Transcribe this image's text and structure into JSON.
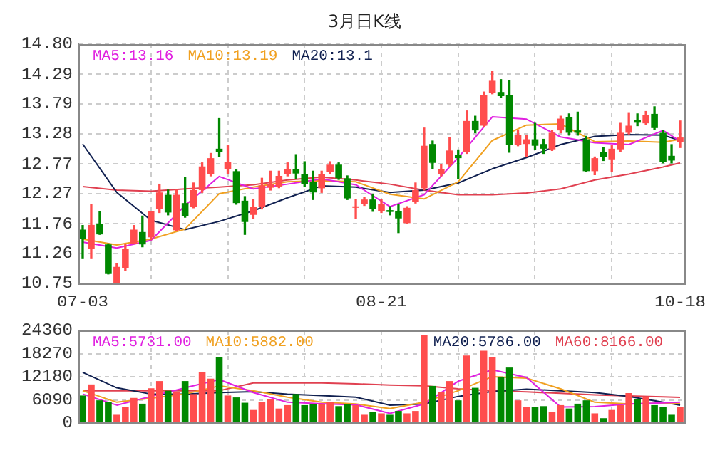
{
  "chart_data": [
    {
      "type": "candlestick",
      "title": "3月日K线",
      "categories": [
        "07-03",
        null,
        null,
        null,
        null,
        null,
        null,
        null,
        null,
        null,
        null,
        null,
        null,
        null,
        null,
        null,
        null,
        null,
        null,
        null,
        null,
        null,
        null,
        null,
        null,
        null,
        null,
        null,
        null,
        null,
        null,
        null,
        null,
        null,
        null,
        "08-21",
        null,
        null,
        null,
        null,
        null,
        null,
        null,
        null,
        null,
        null,
        null,
        null,
        null,
        null,
        null,
        null,
        null,
        null,
        null,
        null,
        null,
        null,
        null,
        null,
        null,
        null,
        null,
        null,
        null,
        null,
        null,
        null,
        null,
        null,
        "10-18"
      ],
      "ohlc": [
        [
          11.66,
          11.73,
          11.17,
          11.5
        ],
        [
          11.33,
          12.09,
          11.17,
          11.74
        ],
        [
          11.76,
          11.97,
          11.58,
          11.58
        ],
        [
          11.41,
          11.42,
          10.91,
          10.91
        ],
        [
          10.76,
          11.09,
          10.75,
          11.03
        ],
        [
          11.01,
          11.41,
          10.97,
          11.34
        ],
        [
          11.42,
          11.73,
          11.42,
          11.66
        ],
        [
          11.62,
          11.89,
          11.37,
          11.41
        ],
        [
          11.53,
          11.97,
          11.49,
          11.97
        ],
        [
          12.01,
          12.43,
          11.95,
          12.29
        ],
        [
          12.25,
          12.33,
          11.91,
          11.95
        ],
        [
          11.65,
          12.33,
          11.65,
          12.25
        ],
        [
          12.11,
          12.55,
          11.87,
          11.89
        ],
        [
          12.05,
          12.45,
          12.03,
          12.33
        ],
        [
          12.33,
          12.79,
          12.29,
          12.73
        ],
        [
          12.6,
          12.95,
          12.57,
          12.87
        ],
        [
          13.03,
          13.54,
          12.9,
          12.98
        ],
        [
          12.68,
          13.08,
          12.61,
          12.81
        ],
        [
          12.65,
          12.67,
          12.09,
          12.11
        ],
        [
          12.15,
          12.22,
          11.58,
          11.79
        ],
        [
          11.91,
          12.17,
          11.85,
          12.05
        ],
        [
          12.05,
          12.53,
          12.01,
          12.41
        ],
        [
          12.37,
          12.65,
          12.33,
          12.43
        ],
        [
          12.39,
          12.65,
          12.37,
          12.57
        ],
        [
          12.6,
          12.79,
          12.57,
          12.69
        ],
        [
          12.69,
          12.93,
          12.53,
          12.61
        ],
        [
          12.6,
          12.81,
          12.39,
          12.43
        ],
        [
          12.47,
          12.65,
          12.17,
          12.29
        ],
        [
          12.36,
          12.65,
          12.29,
          12.6
        ],
        [
          12.63,
          12.81,
          12.61,
          12.76
        ],
        [
          12.76,
          12.79,
          12.51,
          12.53
        ],
        [
          12.53,
          12.57,
          12.17,
          12.19
        ],
        [
          12.03,
          12.17,
          11.85,
          12.04
        ],
        [
          12.09,
          12.21,
          12.07,
          12.17
        ],
        [
          12.17,
          12.25,
          11.97,
          12.01
        ],
        [
          11.97,
          12.17,
          11.95,
          12.09
        ],
        [
          11.99,
          12.05,
          11.91,
          11.96
        ],
        [
          11.97,
          12.09,
          11.61,
          11.85
        ],
        [
          11.77,
          12.05,
          11.77,
          12.03
        ],
        [
          12.13,
          12.45,
          12.11,
          12.33
        ],
        [
          12.36,
          13.38,
          12.33,
          13.08
        ],
        [
          13.11,
          13.16,
          12.69,
          12.79
        ],
        [
          12.6,
          12.76,
          12.57,
          12.68
        ],
        [
          12.76,
          13.22,
          12.73,
          13.0
        ],
        [
          12.93,
          13.01,
          12.53,
          12.87
        ],
        [
          12.97,
          13.67,
          12.95,
          13.5
        ],
        [
          13.5,
          13.58,
          13.3,
          13.34
        ],
        [
          13.42,
          13.99,
          13.4,
          13.94
        ],
        [
          13.98,
          14.34,
          13.96,
          14.18
        ],
        [
          13.99,
          14.2,
          13.9,
          13.92
        ],
        [
          13.94,
          14.18,
          12.97,
          13.1
        ],
        [
          13.1,
          13.34,
          13.08,
          13.26
        ],
        [
          13.11,
          13.26,
          12.9,
          13.19
        ],
        [
          13.19,
          13.46,
          13.02,
          13.08
        ],
        [
          13.11,
          13.19,
          12.95,
          13.03
        ],
        [
          13.02,
          13.34,
          13.0,
          13.3
        ],
        [
          13.34,
          13.58,
          13.3,
          13.54
        ],
        [
          13.56,
          13.62,
          13.26,
          13.3
        ],
        [
          13.34,
          13.65,
          13.26,
          13.3
        ],
        [
          13.19,
          13.24,
          12.65,
          12.65
        ],
        [
          12.65,
          12.89,
          12.59,
          12.87
        ],
        [
          12.97,
          13.05,
          12.83,
          12.89
        ],
        [
          12.85,
          13.08,
          12.65,
          13.03
        ],
        [
          13.02,
          13.46,
          12.98,
          13.3
        ],
        [
          13.3,
          13.64,
          13.28,
          13.42
        ],
        [
          13.51,
          13.62,
          13.42,
          13.47
        ],
        [
          13.46,
          13.66,
          13.44,
          13.6
        ],
        [
          13.62,
          13.74,
          13.36,
          13.38
        ],
        [
          13.3,
          13.34,
          12.79,
          12.81
        ],
        [
          12.91,
          13.1,
          12.79,
          12.83
        ],
        [
          13.14,
          13.5,
          13.05,
          13.22
        ]
      ],
      "colors": [
        "#008800",
        "#ff4d4d",
        "#008800",
        "#008800",
        "#ff4d4d",
        "#ff4d4d",
        "#ff4d4d",
        "#008800",
        "#ff4d4d",
        "#ff4d4d",
        "#008800",
        "#ff4d4d",
        "#008800",
        "#ff4d4d",
        "#ff4d4d",
        "#ff4d4d",
        "#008800",
        "#ff4d4d",
        "#008800",
        "#008800",
        "#ff4d4d",
        "#ff4d4d",
        "#ff4d4d",
        "#ff4d4d",
        "#ff4d4d",
        "#008800",
        "#008800",
        "#008800",
        "#ff4d4d",
        "#ff4d4d",
        "#008800",
        "#008800",
        "#ff4d4d",
        "#ff4d4d",
        "#008800",
        "#ff4d4d",
        "#008800",
        "#008800",
        "#ff4d4d",
        "#ff4d4d",
        "#ff4d4d",
        "#008800",
        "#ff4d4d",
        "#ff4d4d",
        "#008800",
        "#ff4d4d",
        "#008800",
        "#ff4d4d",
        "#ff4d4d",
        "#008800",
        "#008800",
        "#ff4d4d",
        "#ff4d4d",
        "#008800",
        "#008800",
        "#ff4d4d",
        "#ff4d4d",
        "#008800",
        "#008800",
        "#008800",
        "#ff4d4d",
        "#008800",
        "#ff4d4d",
        "#ff4d4d",
        "#ff4d4d",
        "#008800",
        "#ff4d4d",
        "#008800",
        "#008800",
        "#008800",
        "#ff4d4d"
      ],
      "ylim": [
        10.75,
        14.8
      ],
      "yticks": [
        10.75,
        11.26,
        11.76,
        12.27,
        12.77,
        13.28,
        13.79,
        14.29,
        {
          "value": 14.8,
          "label": "14.80"
        }
      ],
      "grid": true,
      "legend": "top left",
      "series": [
        {
          "name": "MA5:13.16",
          "color": "#e020e0",
          "type": "line",
          "values": [
            11.45,
            null,
            null,
            null,
            11.35,
            null,
            null,
            null,
            11.48,
            null,
            null,
            null,
            12.07,
            null,
            null,
            null,
            12.56,
            null,
            null,
            null,
            12.35,
            null,
            null,
            null,
            12.43,
            null,
            null,
            null,
            12.52,
            null,
            null,
            null,
            12.42,
            null,
            null,
            null,
            12.05,
            null,
            null,
            null,
            12.25,
            null,
            null,
            null,
            12.88,
            null,
            null,
            null,
            13.57,
            null,
            null,
            null,
            13.53,
            null,
            null,
            null,
            13.23,
            null,
            null,
            null,
            13.13,
            null,
            null,
            null,
            13.1,
            null,
            null,
            null,
            13.34,
            null,
            13.16
          ]
        },
        {
          "name": "MA10:13.19",
          "color": "#f0a020",
          "type": "line",
          "values": [
            11.5,
            null,
            null,
            null,
            11.4,
            null,
            null,
            null,
            11.5,
            null,
            null,
            null,
            11.67,
            null,
            null,
            null,
            12.27,
            null,
            null,
            null,
            12.38,
            null,
            null,
            null,
            12.47,
            null,
            null,
            null,
            12.49,
            null,
            null,
            null,
            12.47,
            null,
            null,
            null,
            12.26,
            null,
            null,
            null,
            12.18,
            null,
            null,
            null,
            12.47,
            null,
            null,
            null,
            13.17,
            null,
            null,
            null,
            13.43,
            null,
            null,
            null,
            13.45,
            null,
            null,
            null,
            13.15,
            null,
            null,
            null,
            13.16,
            null,
            null,
            null,
            13.14,
            null,
            13.19
          ]
        },
        {
          "name": "MA20:13.1",
          "color": "#102050",
          "type": "line",
          "values": [
            13.11,
            null,
            null,
            null,
            12.29,
            null,
            null,
            null,
            11.82,
            null,
            null,
            null,
            11.66,
            null,
            null,
            null,
            11.8,
            null,
            null,
            null,
            11.98,
            null,
            null,
            null,
            12.2,
            null,
            null,
            null,
            12.4,
            null,
            null,
            null,
            12.38,
            null,
            null,
            null,
            12.29,
            null,
            null,
            null,
            12.33,
            null,
            null,
            null,
            12.45,
            null,
            null,
            null,
            12.69,
            null,
            null,
            null,
            12.88,
            null,
            null,
            null,
            13.1,
            null,
            null,
            null,
            13.24,
            null,
            null,
            null,
            13.27,
            null,
            null,
            null,
            13.26,
            null,
            13.17
          ]
        },
        {
          "color": "#e04050",
          "type": "line",
          "values": [
            12.39,
            null,
            null,
            null,
            12.33,
            null,
            null,
            null,
            12.31,
            null,
            null,
            null,
            12.35,
            null,
            null,
            null,
            12.38,
            null,
            null,
            null,
            12.42,
            null,
            null,
            null,
            12.5,
            null,
            null,
            null,
            12.55,
            null,
            null,
            null,
            12.5,
            null,
            null,
            null,
            12.43,
            null,
            null,
            null,
            12.33,
            null,
            null,
            null,
            12.25,
            null,
            null,
            null,
            12.25,
            null,
            null,
            null,
            12.28,
            null,
            null,
            null,
            12.35,
            null,
            null,
            null,
            12.5,
            null,
            null,
            null,
            12.6,
            null,
            null,
            null,
            12.72,
            null,
            12.79
          ]
        }
      ]
    },
    {
      "type": "bar",
      "categories": [
        null,
        null,
        null,
        null,
        null,
        null,
        null,
        null,
        null,
        null,
        null,
        null,
        null,
        null,
        null,
        null,
        null,
        null,
        null,
        null,
        null,
        null,
        null,
        null,
        null,
        null,
        null,
        null,
        null,
        null,
        null,
        null,
        null,
        null,
        null,
        null,
        null,
        null,
        null,
        null,
        null,
        null,
        null,
        null,
        null,
        null,
        null,
        null,
        null,
        null,
        null,
        null,
        null,
        null,
        null,
        null,
        null,
        null,
        null,
        null,
        null,
        null,
        null,
        null,
        null,
        null,
        null,
        null,
        null,
        null,
        null
      ],
      "tick_labels": "y",
      "ylim": [
        0,
        24360
      ],
      "yticks": [
        0,
        6090,
        12180,
        18270,
        24360
      ],
      "grid": true,
      "legend": "top left",
      "series": [
        {
          "type": "bar",
          "values": [
            7230,
            10150,
            5960,
            5460,
            2160,
            4190,
            6600,
            5080,
            9140,
            11040,
            8500,
            8250,
            11040,
            7610,
            13320,
            11670,
            17380,
            7230,
            6730,
            5330,
            3430,
            5460,
            6350,
            3810,
            4700,
            7610,
            4700,
            4950,
            5080,
            5460,
            4440,
            4950,
            4700,
            2160,
            2920,
            2540,
            2160,
            3170,
            2540,
            3170,
            23220,
            9770,
            8250,
            11040,
            5960,
            17770,
            9260,
            19030,
            17380,
            12060,
            14590,
            5960,
            4190,
            4190,
            4440,
            2920,
            4700,
            3810,
            5080,
            5960,
            2540,
            1270,
            3430,
            4700,
            7870,
            6350,
            6980,
            4700,
            4190,
            2160,
            4190
          ],
          "colors": [
            "#008800",
            "#ff4d4d",
            "#008800",
            "#008800",
            "#ff4d4d",
            "#ff4d4d",
            "#ff4d4d",
            "#008800",
            "#ff4d4d",
            "#ff4d4d",
            "#008800",
            "#ff4d4d",
            "#008800",
            "#ff4d4d",
            "#ff4d4d",
            "#ff4d4d",
            "#008800",
            "#ff4d4d",
            "#008800",
            "#008800",
            "#ff4d4d",
            "#ff4d4d",
            "#ff4d4d",
            "#ff4d4d",
            "#ff4d4d",
            "#008800",
            "#008800",
            "#008800",
            "#ff4d4d",
            "#ff4d4d",
            "#008800",
            "#008800",
            "#ff4d4d",
            "#ff4d4d",
            "#008800",
            "#ff4d4d",
            "#008800",
            "#008800",
            "#ff4d4d",
            "#ff4d4d",
            "#ff4d4d",
            "#008800",
            "#ff4d4d",
            "#ff4d4d",
            "#008800",
            "#ff4d4d",
            "#008800",
            "#ff4d4d",
            "#ff4d4d",
            "#008800",
            "#008800",
            "#ff4d4d",
            "#ff4d4d",
            "#008800",
            "#008800",
            "#ff4d4d",
            "#ff4d4d",
            "#008800",
            "#008800",
            "#008800",
            "#ff4d4d",
            "#008800",
            "#ff4d4d",
            "#ff4d4d",
            "#ff4d4d",
            "#008800",
            "#ff4d4d",
            "#008800",
            "#008800",
            "#008800",
            "#ff4d4d"
          ]
        },
        {
          "name": "MA5:5731.00",
          "color": "#e020e0",
          "type": "line",
          "values": [
            7610,
            null,
            null,
            null,
            4700,
            null,
            null,
            null,
            7000,
            null,
            null,
            null,
            9260,
            null,
            null,
            null,
            11420,
            null,
            null,
            null,
            8000,
            null,
            null,
            null,
            5460,
            null,
            null,
            null,
            5080,
            null,
            null,
            null,
            4800,
            null,
            null,
            null,
            2540,
            null,
            null,
            null,
            5000,
            null,
            null,
            null,
            11000,
            null,
            null,
            null,
            14000,
            null,
            null,
            null,
            12000,
            null,
            null,
            null,
            4200,
            null,
            null,
            null,
            4300,
            null,
            null,
            null,
            5000,
            null,
            null,
            null,
            5300,
            null,
            5460
          ]
        },
        {
          "name": "MA10:5882.00",
          "color": "#f0a020",
          "type": "line",
          "values": [
            8500,
            null,
            null,
            null,
            5460,
            null,
            null,
            null,
            6500,
            null,
            null,
            null,
            7610,
            null,
            null,
            null,
            9770,
            null,
            null,
            null,
            8500,
            null,
            null,
            null,
            6800,
            null,
            null,
            null,
            5460,
            null,
            null,
            null,
            5000,
            null,
            null,
            null,
            3810,
            null,
            null,
            null,
            5500,
            null,
            null,
            null,
            8500,
            null,
            null,
            null,
            12200,
            null,
            null,
            null,
            11800,
            null,
            null,
            null,
            9000,
            null,
            null,
            null,
            5460,
            null,
            null,
            null,
            5000,
            null,
            null,
            null,
            5200,
            null,
            5080
          ]
        },
        {
          "name": "MA20:5786.00",
          "color": "#102050",
          "type": "line",
          "values": [
            13320,
            null,
            null,
            null,
            9260,
            null,
            null,
            null,
            7610,
            null,
            null,
            null,
            7610,
            null,
            null,
            null,
            8000,
            null,
            null,
            null,
            8250,
            null,
            null,
            null,
            7600,
            null,
            null,
            null,
            7230,
            null,
            null,
            null,
            6800,
            null,
            null,
            null,
            4700,
            null,
            null,
            null,
            5000,
            null,
            null,
            null,
            7000,
            null,
            null,
            null,
            8300,
            null,
            null,
            null,
            8880,
            null,
            null,
            null,
            8500,
            null,
            null,
            null,
            8000,
            null,
            null,
            null,
            7000,
            null,
            null,
            null,
            5500,
            null,
            4700
          ]
        },
        {
          "name": "MA60:8166.00",
          "color": "#e04050",
          "type": "line",
          "values": [
            8500,
            null,
            null,
            null,
            8500,
            null,
            null,
            null,
            8500,
            null,
            null,
            null,
            8500,
            null,
            null,
            null,
            8500,
            null,
            null,
            null,
            10530,
            null,
            null,
            null,
            10530,
            null,
            null,
            null,
            10530,
            null,
            null,
            null,
            10300,
            null,
            null,
            null,
            10000,
            null,
            null,
            null,
            9770,
            null,
            null,
            null,
            9000,
            null,
            null,
            null,
            8500,
            null,
            null,
            null,
            8200,
            null,
            null,
            null,
            7800,
            null,
            null,
            null,
            7400,
            null,
            null,
            null,
            7100,
            null,
            null,
            null,
            6900,
            null,
            6730
          ]
        }
      ]
    }
  ]
}
